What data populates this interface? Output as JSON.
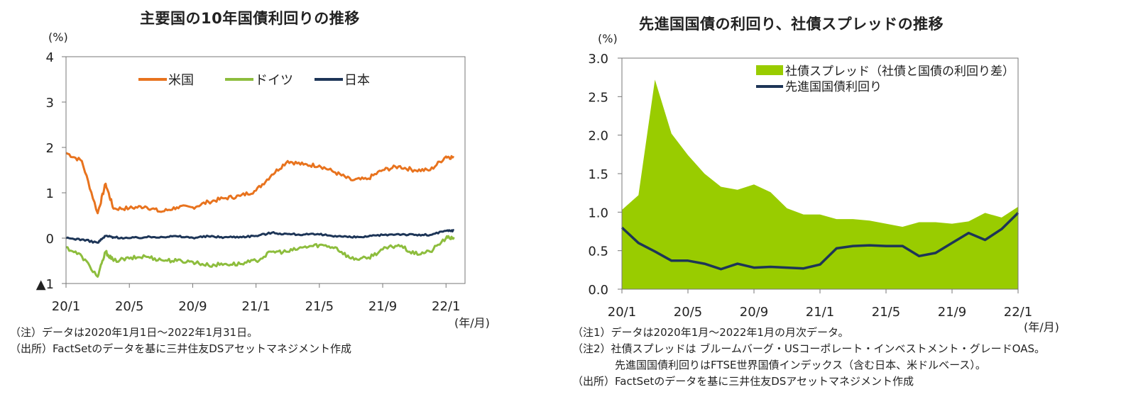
{
  "left": {
    "title": "主要国の10年国債利回りの推移",
    "unit": "(%)",
    "unit_x": "(年/月)",
    "notes": [
      "（注）データは2020年1月1日～2022年1月31日。",
      "（出所）FactSetのデータを基に三井住友DSアセットマネジメント作成"
    ]
  },
  "right": {
    "title": "先進国国債の利回り、社債スプレッドの推移",
    "unit": "(%)",
    "unit_x": "(年/月)",
    "notes": [
      "（注1）データは2020年1月～2022年1月の月次データ。",
      "（注2）社債スプレッドは ブルームバーグ・USコーポレート・インベストメント・グレードOAS。",
      "　　　　先進国国債利回りはFTSE世界国債インデックス（含む日本、米ドルベース）。",
      "（出所）FactSetのデータを基に三井住友DSアセットマネジメント作成"
    ]
  },
  "chart_data": [
    {
      "type": "line",
      "title": "主要国の10年国債利回りの推移",
      "ylabel": "(%)",
      "xlabel": "(年/月)",
      "ylim": [
        -1,
        4
      ],
      "yticks": [
        -1,
        0,
        1,
        2,
        3,
        4
      ],
      "ytick_labels": [
        "▲1",
        "0",
        "1",
        "2",
        "3",
        "4"
      ],
      "xticks": [
        "20/1",
        "20/5",
        "20/9",
        "21/1",
        "21/5",
        "21/9",
        "22/1"
      ],
      "legend_position": "top-center",
      "grid": false,
      "x": [
        "20/1",
        "20/2",
        "20/3",
        "20/3",
        "20/4",
        "20/5",
        "20/6",
        "20/7",
        "20/8",
        "20/9",
        "20/10",
        "20/11",
        "20/12",
        "21/1",
        "21/2",
        "21/3",
        "21/4",
        "21/5",
        "21/6",
        "21/7",
        "21/8",
        "21/9",
        "21/10",
        "21/11",
        "21/12",
        "22/1",
        "22/1"
      ],
      "series": [
        {
          "name": "米国",
          "color": "#e8731e",
          "values": [
            1.88,
            1.7,
            0.55,
            1.2,
            0.65,
            0.66,
            0.7,
            0.58,
            0.68,
            0.68,
            0.8,
            0.88,
            0.93,
            1.05,
            1.4,
            1.7,
            1.62,
            1.6,
            1.45,
            1.28,
            1.3,
            1.5,
            1.58,
            1.5,
            1.5,
            1.8,
            1.78
          ]
        },
        {
          "name": "ドイツ",
          "color": "#8dbd3d",
          "values": [
            -0.2,
            -0.4,
            -0.85,
            -0.3,
            -0.5,
            -0.45,
            -0.4,
            -0.48,
            -0.5,
            -0.52,
            -0.6,
            -0.57,
            -0.57,
            -0.5,
            -0.3,
            -0.3,
            -0.2,
            -0.15,
            -0.2,
            -0.45,
            -0.45,
            -0.25,
            -0.15,
            -0.35,
            -0.3,
            0.0,
            0.02
          ]
        },
        {
          "name": "日本",
          "color": "#1d3557",
          "values": [
            0.0,
            -0.03,
            -0.1,
            0.05,
            0.02,
            0.0,
            0.02,
            0.03,
            0.04,
            0.01,
            0.04,
            0.02,
            0.03,
            0.05,
            0.12,
            0.09,
            0.08,
            0.08,
            0.05,
            0.02,
            0.03,
            0.07,
            0.09,
            0.07,
            0.07,
            0.16,
            0.17
          ]
        }
      ]
    },
    {
      "type": "area",
      "title": "先進国国債の利回り、社債スプレッドの推移",
      "ylabel": "(%)",
      "xlabel": "(年/月)",
      "ylim": [
        0,
        3.0
      ],
      "yticks": [
        0.0,
        0.5,
        1.0,
        1.5,
        2.0,
        2.5,
        3.0
      ],
      "ytick_labels": [
        "0.0",
        "0.5",
        "1.0",
        "1.5",
        "2.0",
        "2.5",
        "3.0"
      ],
      "xticks": [
        "20/1",
        "20/5",
        "20/9",
        "21/1",
        "21/5",
        "21/9",
        "22/1"
      ],
      "legend_position": "top-right",
      "grid": false,
      "categories": [
        "20/1",
        "20/2",
        "20/3",
        "20/4",
        "20/5",
        "20/6",
        "20/7",
        "20/8",
        "20/9",
        "20/10",
        "20/11",
        "20/12",
        "21/1",
        "21/2",
        "21/3",
        "21/4",
        "21/5",
        "21/6",
        "21/7",
        "21/8",
        "21/9",
        "21/10",
        "21/11",
        "21/12",
        "22/1"
      ],
      "series": [
        {
          "name": "社債スプレッド（社債と国債の利回り差）",
          "kind": "area",
          "color": "#99cc00",
          "values": [
            1.03,
            1.22,
            2.72,
            2.02,
            1.74,
            1.5,
            1.33,
            1.29,
            1.36,
            1.26,
            1.05,
            0.97,
            0.97,
            0.91,
            0.91,
            0.89,
            0.85,
            0.81,
            0.87,
            0.87,
            0.85,
            0.88,
            0.99,
            0.93,
            1.07
          ]
        },
        {
          "name": "先進国国債利回り",
          "kind": "line",
          "color": "#1d3557",
          "values": [
            0.8,
            0.6,
            0.49,
            0.37,
            0.37,
            0.33,
            0.26,
            0.33,
            0.28,
            0.29,
            0.28,
            0.27,
            0.32,
            0.53,
            0.56,
            0.57,
            0.56,
            0.56,
            0.43,
            0.47,
            0.6,
            0.73,
            0.64,
            0.78,
            0.99
          ]
        }
      ]
    }
  ]
}
